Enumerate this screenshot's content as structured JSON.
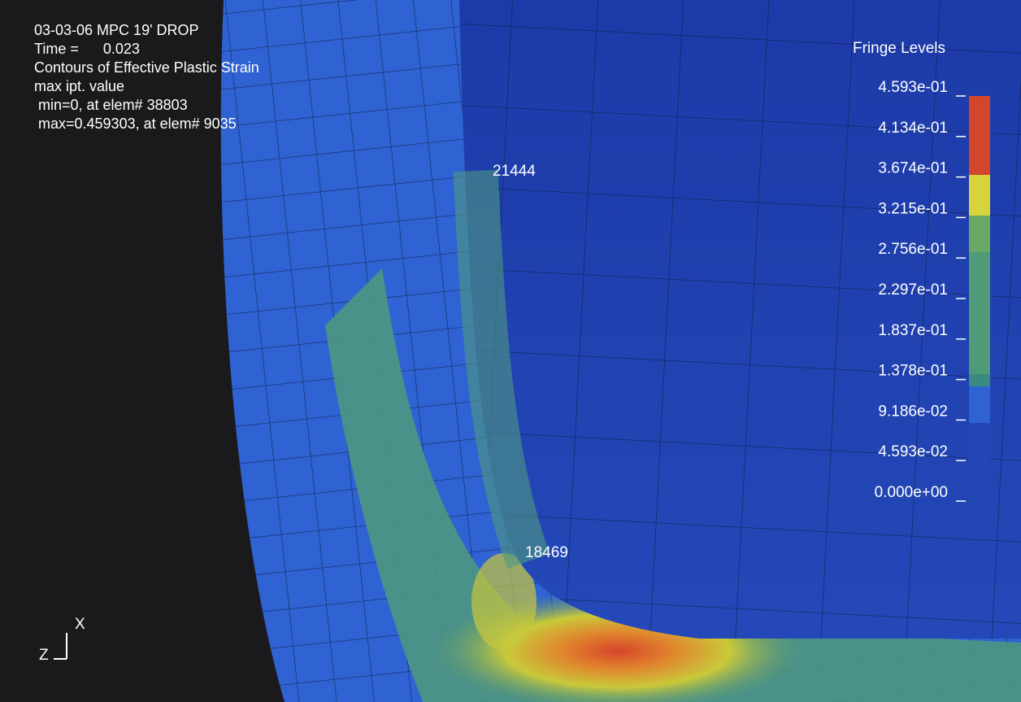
{
  "header": {
    "lines": [
      "03-03-06 MPC 19' DROP",
      "Time =      0.023",
      "Contours of Effective Plastic Strain",
      "max ipt. value",
      " min=0, at elem# 38803",
      " max=0.459303, at elem# 9035"
    ]
  },
  "node_labels": [
    "21444",
    "18469"
  ],
  "legend": {
    "title": "Fringe Levels",
    "levels": [
      "4.593e-01",
      "4.134e-01",
      "3.674e-01",
      "3.215e-01",
      "2.756e-01",
      "2.297e-01",
      "1.837e-01",
      "1.378e-01",
      "9.186e-02",
      "4.593e-02",
      "0.000e+00"
    ]
  },
  "triad": {
    "x": "X",
    "z": "Z"
  }
}
